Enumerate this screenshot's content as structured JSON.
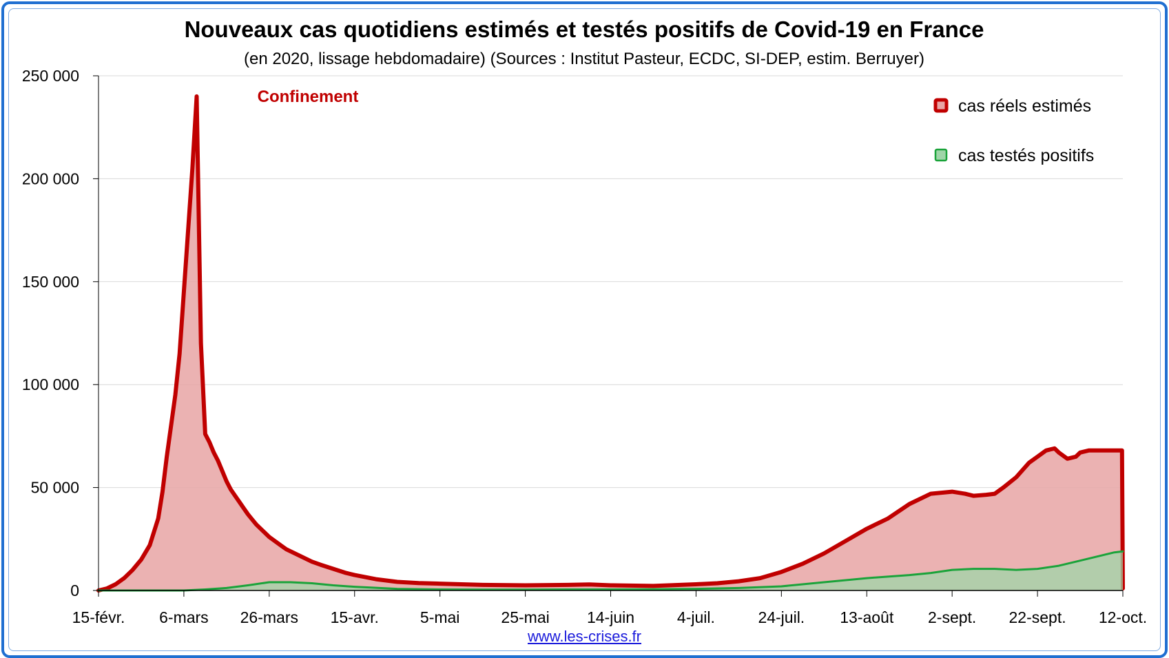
{
  "chart_data": {
    "type": "area",
    "title": "Nouveaux cas quotidiens estimés et testés positifs de Covid-19 en France",
    "subtitle": "(en 2020, lissage hebdomadaire) (Sources : Institut Pasteur, ECDC, SI-DEP, estim. Berruyer)",
    "ylim": [
      0,
      250000
    ],
    "y_ticks": [
      0,
      50000,
      100000,
      150000,
      200000,
      250000
    ],
    "y_tick_labels": [
      "0",
      "50 000",
      "100 000",
      "150 000",
      "200 000",
      "250 000"
    ],
    "x_tick_labels": [
      "15-févr.",
      "6-mars",
      "26-mars",
      "15-avr.",
      "5-mai",
      "25-mai",
      "14-juin",
      "4-juil.",
      "24-juil.",
      "13-août",
      "2-sept.",
      "22-sept.",
      "12-oct."
    ],
    "x_range_days": [
      0,
      240
    ],
    "x_unit": "days since 15-févr. 2020",
    "grid": true,
    "legend_position": "top-right",
    "annotations": [
      {
        "text": "Confinement",
        "x": 34,
        "y": 240000,
        "color": "#c00000"
      }
    ],
    "series": [
      {
        "name": "cas réels estimés",
        "stroke": "#c00000",
        "fill": "#e8a5a5",
        "x": [
          0,
          2,
          4,
          6,
          8,
          10,
          12,
          14,
          15,
          16,
          17,
          18,
          19,
          20,
          21,
          22,
          23,
          24,
          25,
          26,
          27,
          28,
          29,
          30,
          30.5,
          31,
          32,
          33,
          34,
          35,
          36,
          37,
          38,
          39,
          40,
          41,
          42,
          43,
          44,
          45,
          46,
          48,
          50,
          52,
          55,
          58,
          60,
          65,
          70,
          75,
          80,
          85,
          90,
          100,
          110,
          115,
          120,
          130,
          140,
          145,
          150,
          155,
          160,
          165,
          170,
          175,
          180,
          185,
          190,
          195,
          200,
          203,
          205,
          208,
          210,
          212,
          215,
          218,
          220,
          222,
          224,
          225,
          227,
          229,
          230,
          232,
          235,
          238,
          239.8,
          240
        ],
        "values": [
          0,
          1000,
          3000,
          6000,
          10000,
          15000,
          22000,
          35000,
          48000,
          65000,
          80000,
          95000,
          115000,
          145000,
          175000,
          205000,
          240000,
          120000,
          76000,
          72000,
          67000,
          63000,
          58000,
          53000,
          51000,
          49000,
          46000,
          43000,
          40000,
          37000,
          34500,
          32000,
          30000,
          28000,
          26000,
          24500,
          23000,
          21500,
          20000,
          19000,
          18000,
          16000,
          14000,
          12500,
          10500,
          8500,
          7500,
          5500,
          4200,
          3600,
          3300,
          3000,
          2700,
          2500,
          2700,
          2900,
          2500,
          2200,
          3000,
          3500,
          4500,
          6000,
          9000,
          13000,
          18000,
          24000,
          30000,
          35000,
          42000,
          47000,
          48000,
          47000,
          46000,
          46500,
          47000,
          50000,
          55000,
          62000,
          65000,
          68000,
          69000,
          67000,
          64000,
          65000,
          67000,
          68000,
          68000,
          68000,
          68000,
          1000
        ]
      },
      {
        "name": "cas testés positifs",
        "stroke": "#1aa33a",
        "fill": "#9fd5a8",
        "x": [
          0,
          20,
          25,
          30,
          35,
          40,
          45,
          50,
          55,
          60,
          70,
          80,
          90,
          100,
          110,
          120,
          130,
          140,
          150,
          160,
          170,
          180,
          190,
          195,
          200,
          205,
          210,
          215,
          220,
          225,
          230,
          235,
          238,
          240
        ],
        "values": [
          0,
          0,
          500,
          1200,
          2500,
          4000,
          4000,
          3500,
          2500,
          1800,
          800,
          500,
          400,
          400,
          500,
          500,
          600,
          800,
          1200,
          2000,
          4000,
          6000,
          7500,
          8500,
          10000,
          10500,
          10500,
          10000,
          10500,
          12000,
          14500,
          17000,
          18500,
          19000
        ]
      }
    ]
  },
  "legend": {
    "items": [
      {
        "label": "cas réels estimés",
        "stroke": "#c00000",
        "fill": "#e8a5a5"
      },
      {
        "label": "cas testés positifs",
        "stroke": "#1aa33a",
        "fill": "#9fd5a8"
      }
    ]
  },
  "footer": {
    "source_link": "www.les-crises.fr"
  },
  "colors": {
    "frame": "#1f6fd1",
    "axis": "#000000",
    "grid": "#d9d9d9"
  }
}
